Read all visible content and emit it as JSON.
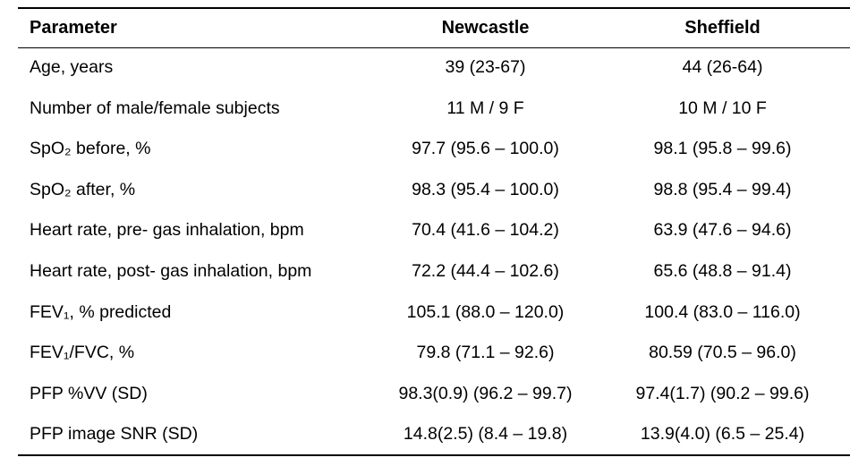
{
  "table": {
    "headers": [
      "Parameter",
      "Newcastle",
      "Sheffield"
    ],
    "rows": [
      [
        "Age, years",
        "39 (23-67)",
        "44 (26-64)"
      ],
      [
        "Number of male/female subjects",
        "11 M / 9 F",
        "10 M / 10 F"
      ],
      [
        "SpO₂ before, %",
        "97.7 (95.6 – 100.0)",
        "98.1 (95.8 – 99.6)"
      ],
      [
        "SpO₂ after, %",
        "98.3 (95.4 – 100.0)",
        "98.8 (95.4 – 99.4)"
      ],
      [
        "Heart rate, pre- gas inhalation, bpm",
        "70.4 (41.6 – 104.2)",
        "63.9 (47.6 – 94.6)"
      ],
      [
        "Heart rate, post- gas inhalation, bpm",
        "72.2 (44.4 – 102.6)",
        "65.6 (48.8 – 91.4)"
      ],
      [
        "FEV₁, % predicted",
        "105.1 (88.0 – 120.0)",
        "100.4 (83.0 – 116.0)"
      ],
      [
        "FEV₁/FVC, %",
        "79.8 (71.1 – 92.6)",
        "80.59 (70.5 – 96.0)"
      ],
      [
        "PFP %VV (SD)",
        "98.3(0.9) (96.2 – 99.7)",
        "97.4(1.7) (90.2 – 99.6)"
      ],
      [
        "PFP image SNR (SD)",
        "14.8(2.5) (8.4 – 19.8)",
        "13.9(4.0) (6.5 – 25.4)"
      ]
    ],
    "text_color": "#000000",
    "rule_color": "#000000"
  }
}
